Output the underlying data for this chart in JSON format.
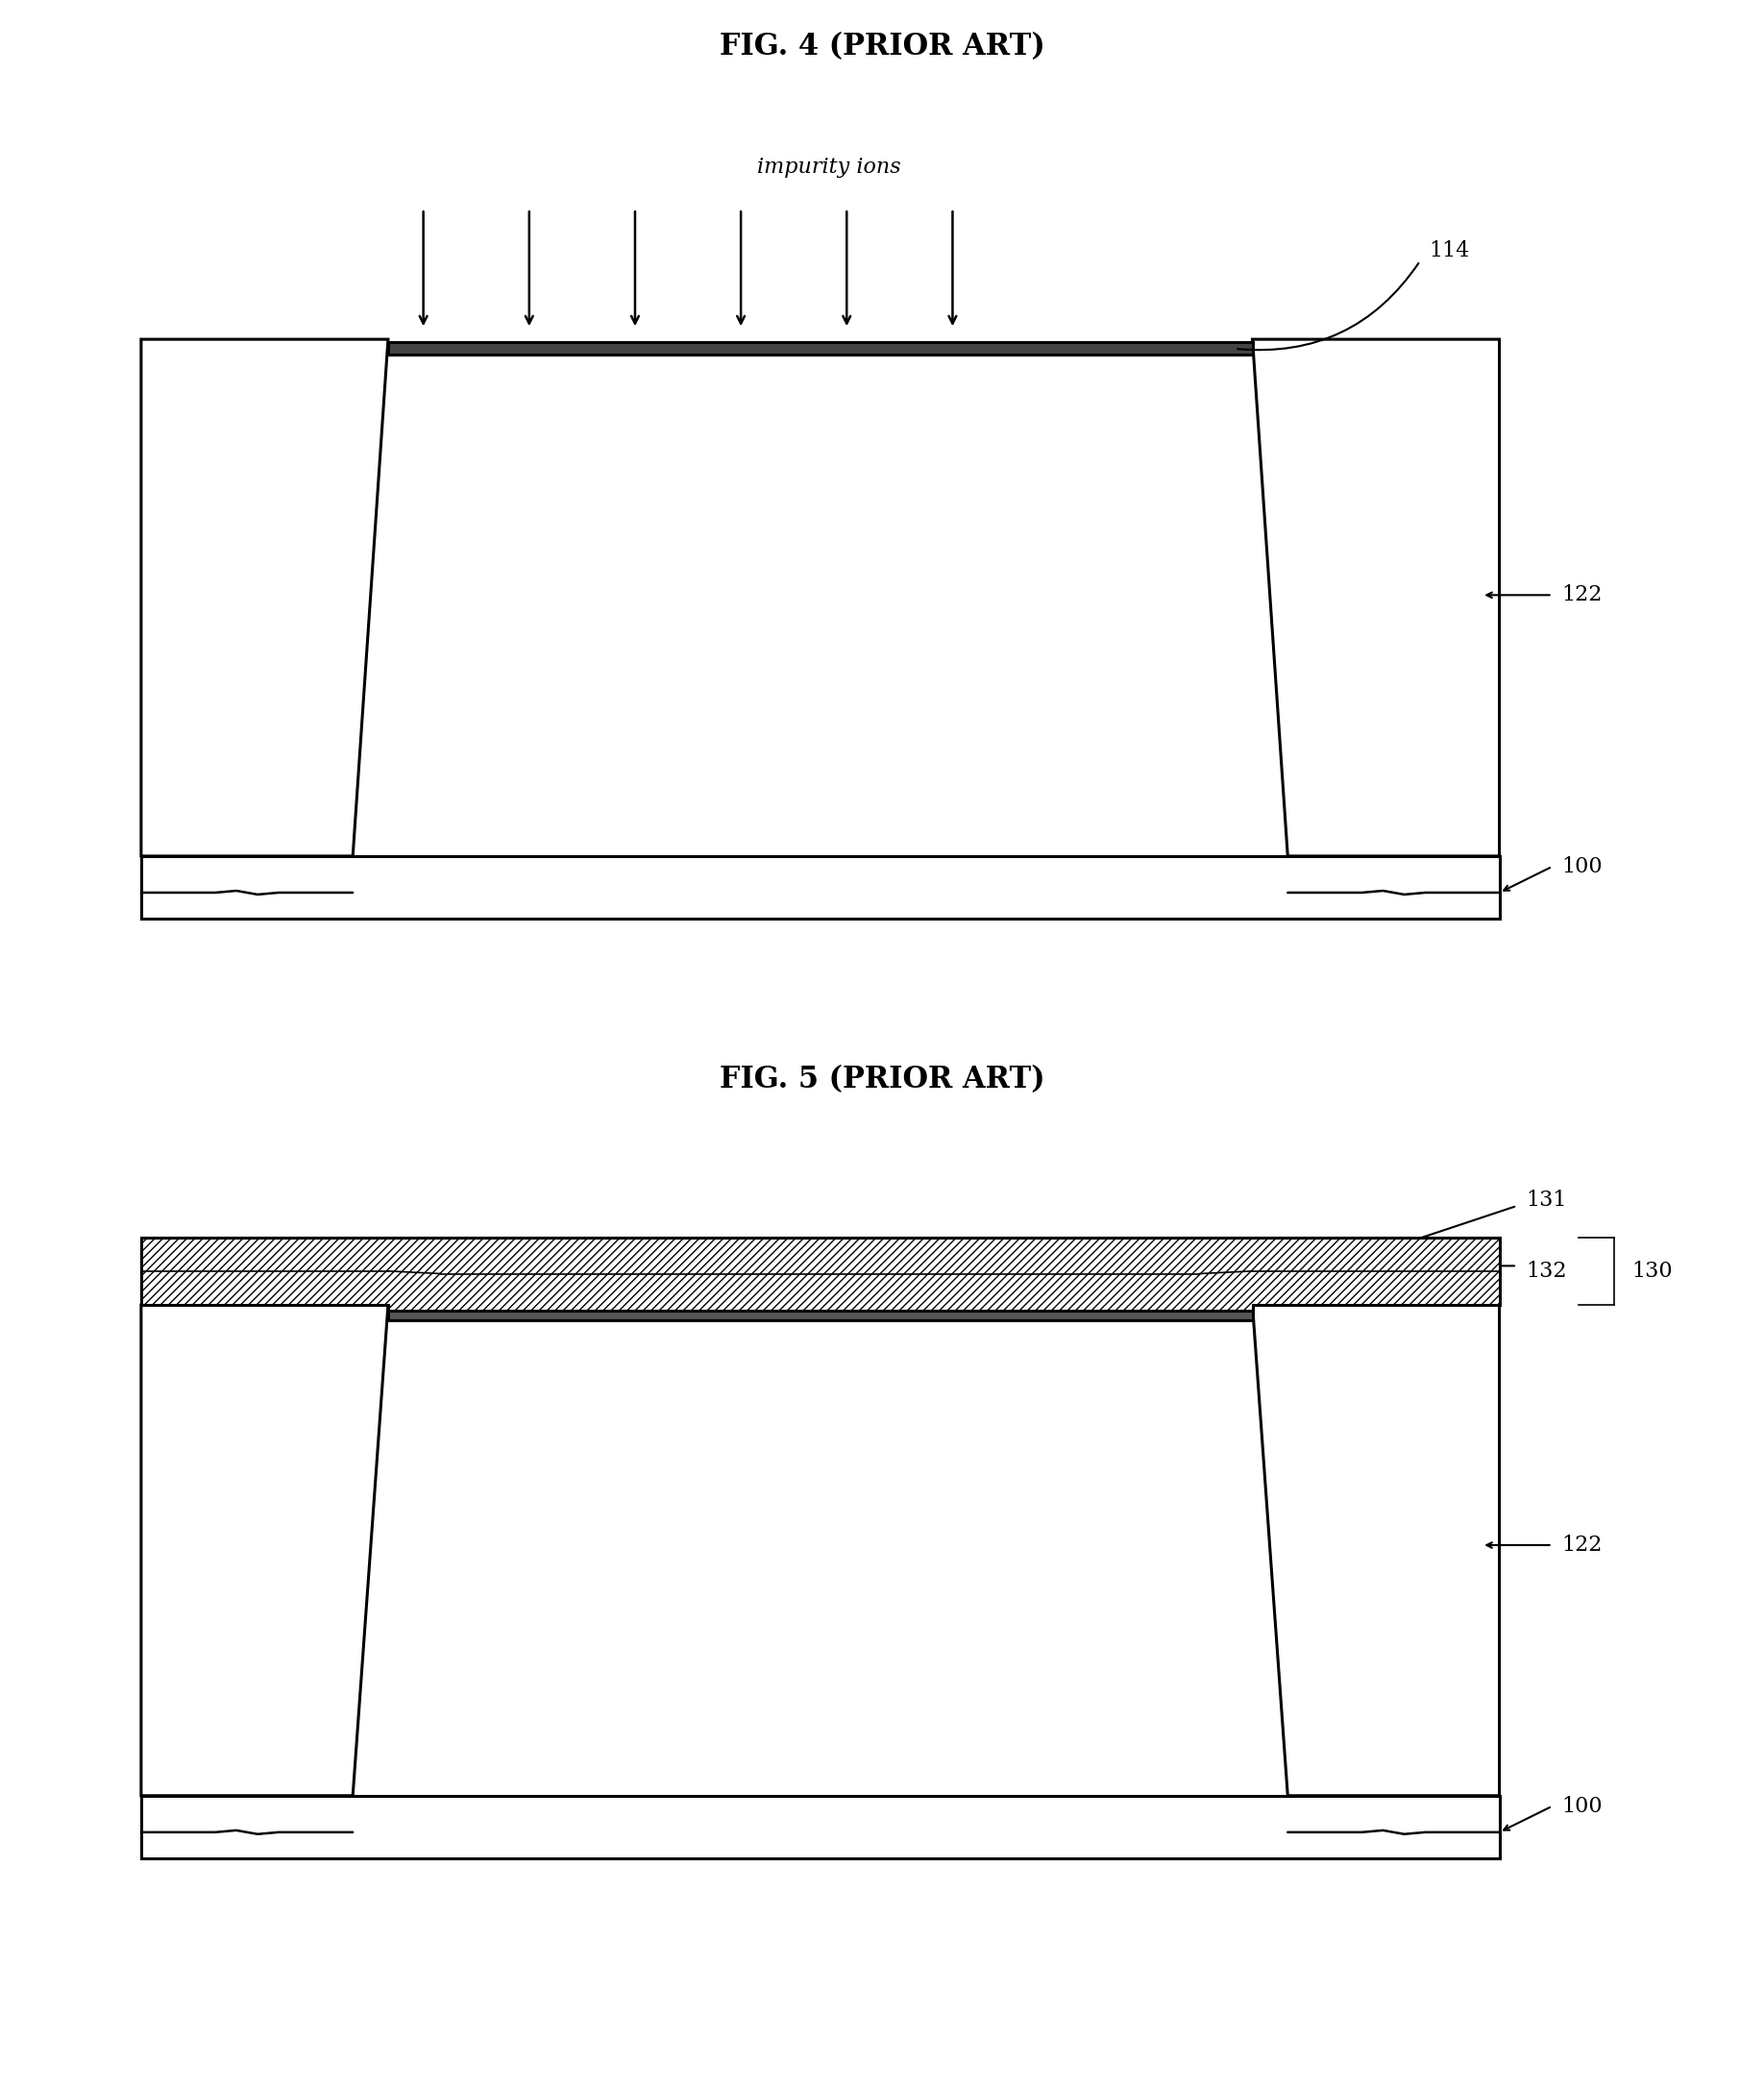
{
  "fig4_title": "FIG. 4 (PRIOR ART)",
  "fig5_title": "FIG. 5 (PRIOR ART)",
  "background_color": "#ffffff",
  "line_color": "#000000",
  "impurity_label": "impurity ions",
  "label_114": "114",
  "label_122_fig4": "122",
  "label_100_fig4": "100",
  "label_130": "130",
  "label_131": "131",
  "label_132": "132",
  "label_122_fig5": "122",
  "label_100_fig5": "100",
  "title_fontsize": 22,
  "label_fontsize": 16,
  "annotation_fontsize": 16
}
